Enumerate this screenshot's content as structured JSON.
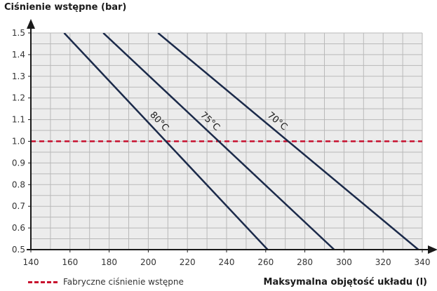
{
  "chart_data": {
    "type": "line",
    "ylabel": "Ciśnienie wstępne (bar)",
    "xlabel": "Maksymalna objętość układu (l)",
    "xlim": [
      140,
      340
    ],
    "ylim": [
      0.5,
      1.5
    ],
    "xticks": [
      "140",
      "160",
      "180",
      "200",
      "220",
      "240",
      "260",
      "280",
      "300",
      "320",
      "340"
    ],
    "yticks": [
      "0.5",
      "0.6",
      "0.7",
      "0.8",
      "0.9",
      "1.0",
      "1.1",
      "1.2",
      "1.3",
      "1.4",
      "1.5"
    ],
    "grid": true,
    "series": [
      {
        "name": "80°C",
        "x": [
          157,
          261
        ],
        "y": [
          1.5,
          0.5
        ],
        "color": "#1b2a4a"
      },
      {
        "name": "75°C",
        "x": [
          177,
          295
        ],
        "y": [
          1.5,
          0.5
        ],
        "color": "#1b2a4a"
      },
      {
        "name": "70°C",
        "x": [
          205,
          338
        ],
        "y": [
          1.5,
          0.5
        ],
        "color": "#1b2a4a"
      }
    ],
    "reference_line": {
      "name": "Fabryczne ciśnienie wstępne",
      "y": 1.0,
      "style": "dashed",
      "color": "#c8102e"
    },
    "legend": {
      "entries": [
        "Fabryczne ciśnienie wstępne"
      ],
      "position": "bottom-left"
    },
    "background": "#ececec"
  }
}
